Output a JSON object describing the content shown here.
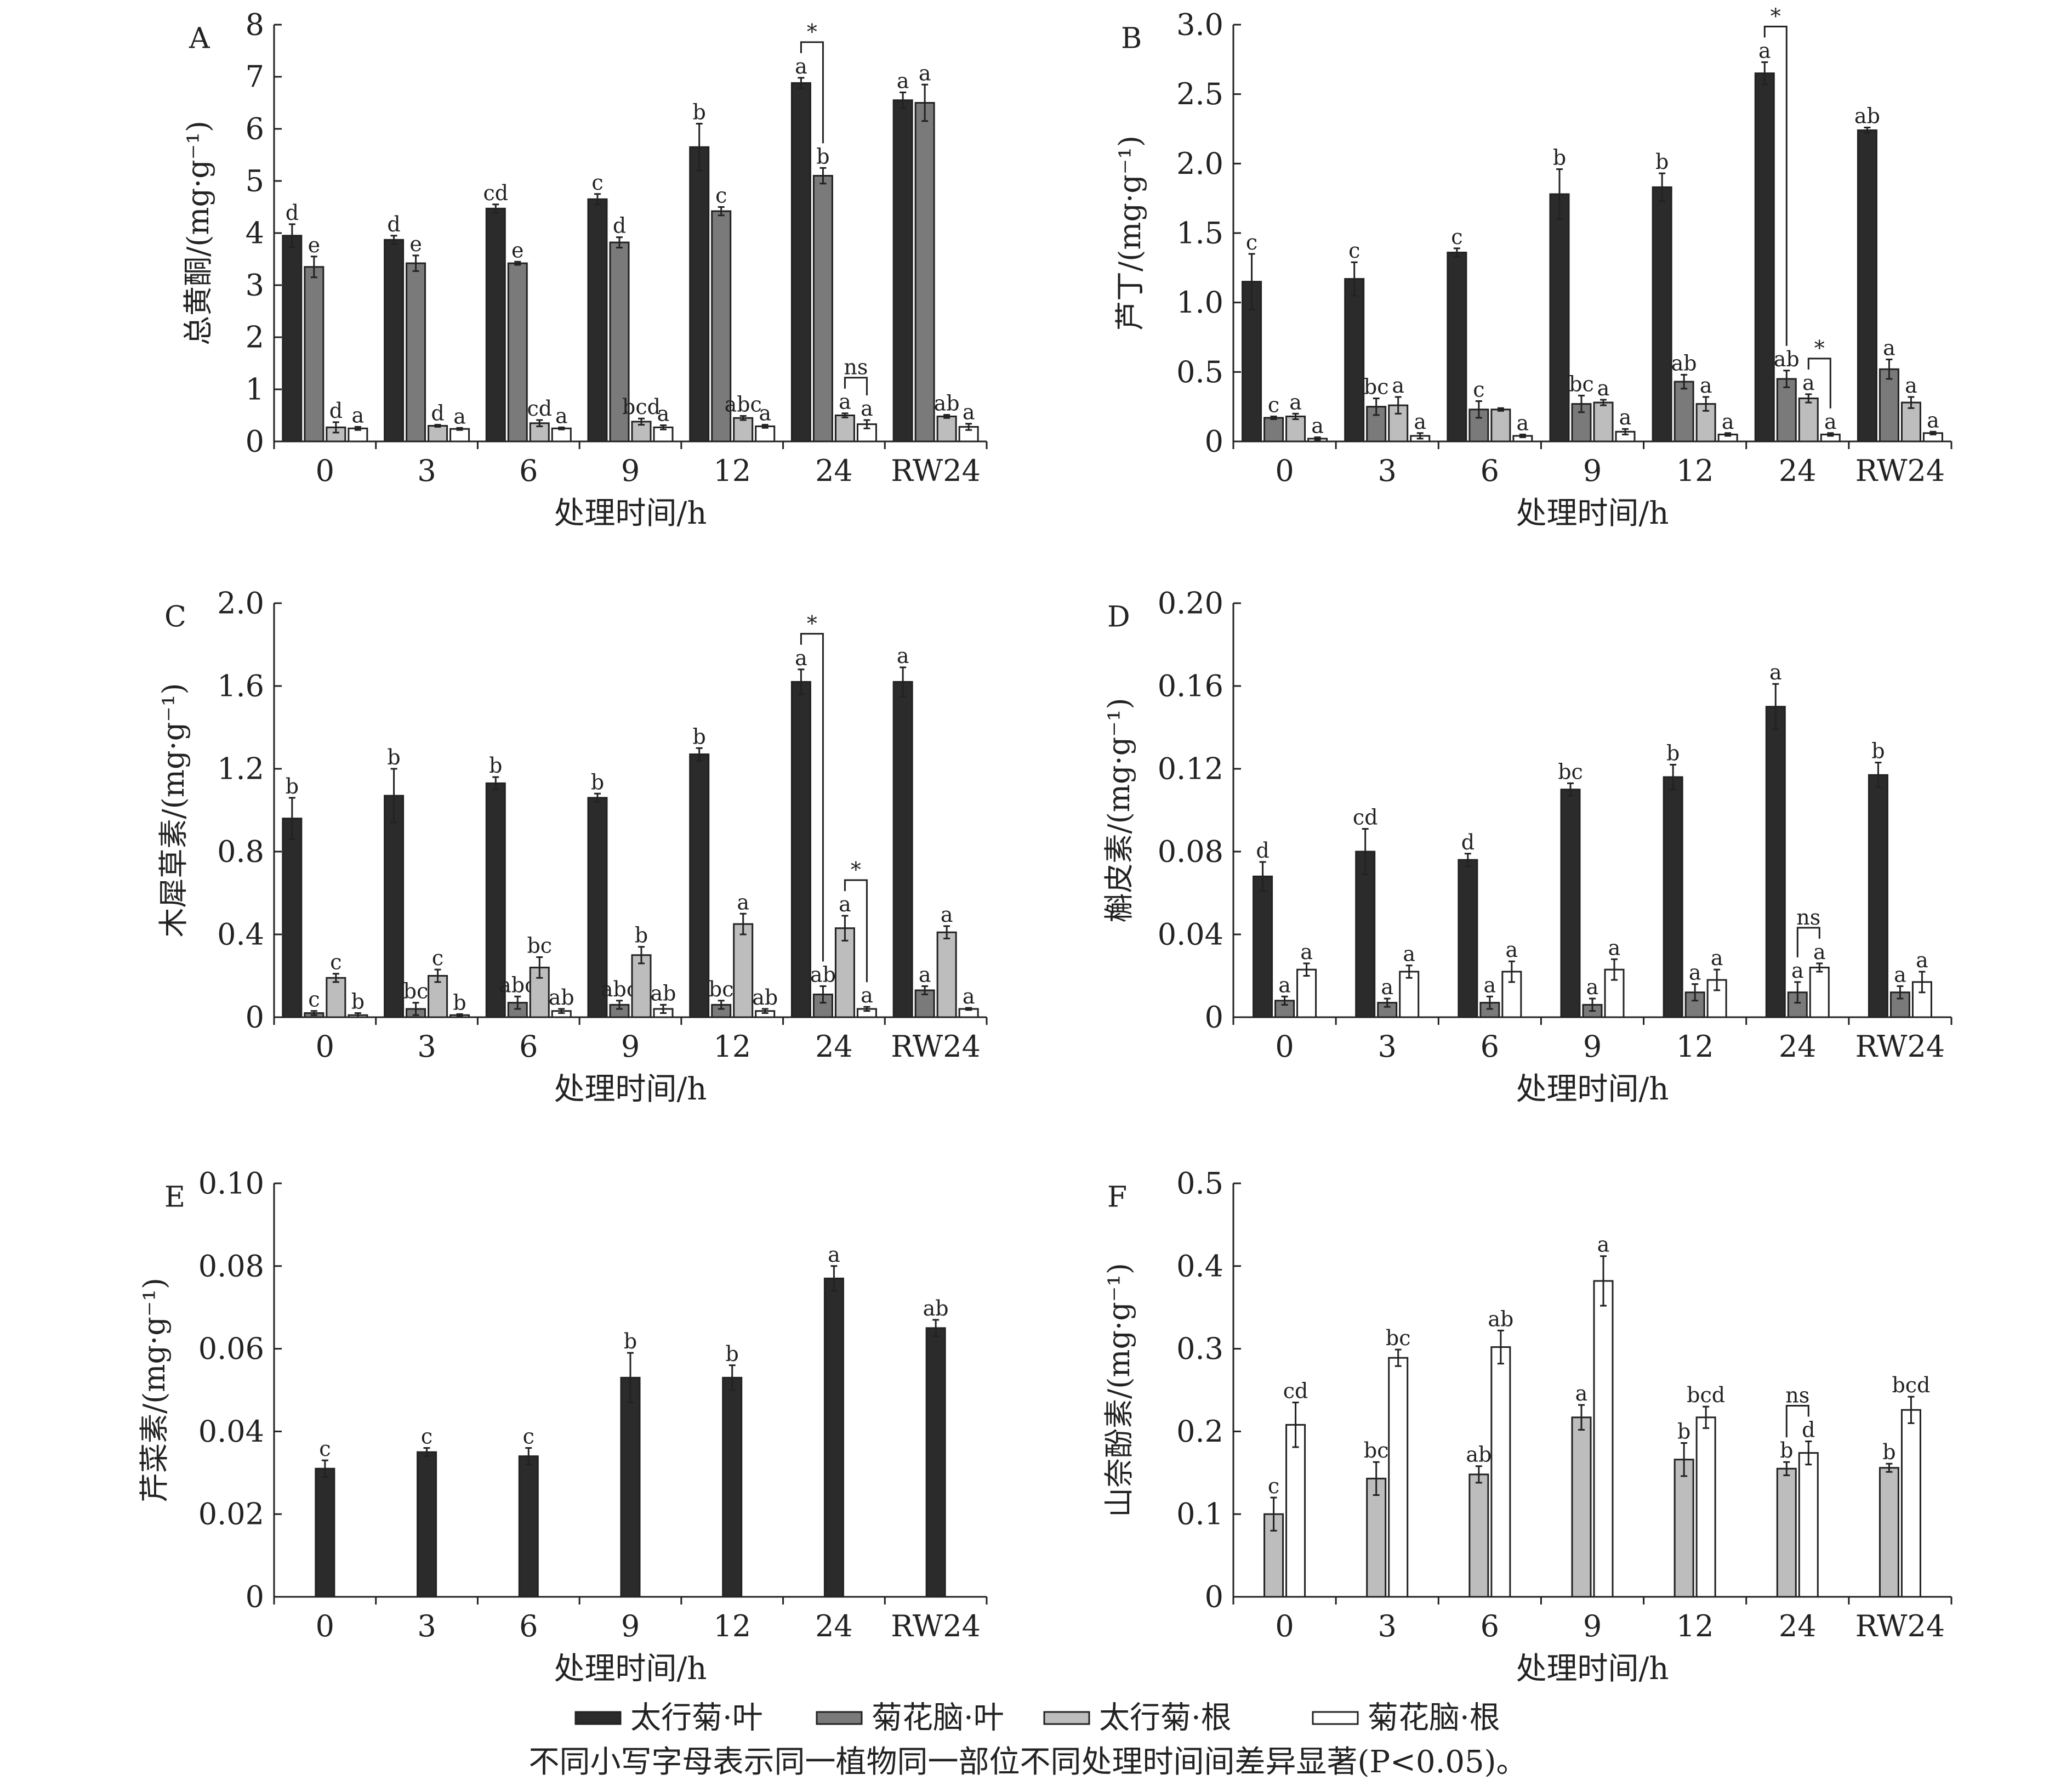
{
  "legend": [
    {
      "name": "太行菊·叶",
      "color": "#2b2b2b"
    },
    {
      "name": "菊花脑·叶",
      "color": "#7a7a7a"
    },
    {
      "name": "太行菊·根",
      "color": "#bdbdbd"
    },
    {
      "name": "菊花脑·根",
      "color": "#ffffff"
    }
  ],
  "footnote": "不同小写字母表示同一植物同一部位不同处理时间间差异显著(P<0.05)。",
  "chart_data": [
    {
      "type": "bar",
      "panel": "A",
      "ylabel": "总黄酮/(mg·g⁻¹)",
      "xlabel": "处理时间/h",
      "categories": [
        "0",
        "3",
        "6",
        "9",
        "12",
        "24",
        "RW24"
      ],
      "ylim": [
        0,
        8
      ],
      "yticks": [
        "0",
        "1",
        "2",
        "3",
        "4",
        "5",
        "6",
        "7",
        "8"
      ],
      "ytick_values": [
        0,
        1,
        2,
        3,
        4,
        5,
        6,
        7,
        8
      ],
      "series": [
        {
          "name": "太行菊·叶",
          "values": [
            3.95,
            3.87,
            4.47,
            4.65,
            5.65,
            6.88,
            6.55
          ],
          "errors": [
            0.22,
            0.08,
            0.08,
            0.1,
            0.45,
            0.1,
            0.15
          ],
          "labels": [
            "d",
            "d",
            "cd",
            "c",
            "b",
            "a",
            "a"
          ]
        },
        {
          "name": "菊花脑·叶",
          "values": [
            3.35,
            3.42,
            3.42,
            3.82,
            4.42,
            5.1,
            6.5
          ],
          "errors": [
            0.2,
            0.15,
            0.03,
            0.1,
            0.08,
            0.15,
            0.35
          ],
          "labels": [
            "e",
            "e",
            "e",
            "d",
            "c",
            "b",
            "a"
          ]
        },
        {
          "name": "太行菊·根",
          "values": [
            0.27,
            0.3,
            0.35,
            0.38,
            0.45,
            0.5,
            0.48
          ],
          "errors": [
            0.1,
            0.02,
            0.06,
            0.06,
            0.04,
            0.04,
            0.03
          ],
          "labels": [
            "d",
            "d",
            "cd",
            "bcd",
            "abc",
            "a",
            "ab"
          ]
        },
        {
          "name": "菊花脑·根",
          "values": [
            0.25,
            0.24,
            0.25,
            0.27,
            0.29,
            0.33,
            0.28
          ],
          "errors": [
            0.03,
            0.02,
            0.02,
            0.04,
            0.03,
            0.08,
            0.06
          ],
          "labels": [
            "a",
            "a",
            "a",
            "a",
            "a",
            "a",
            "a"
          ]
        }
      ],
      "annotations": [
        {
          "category": "24",
          "series": [
            "太行菊·叶",
            "菊花脑·叶"
          ],
          "text": "*"
        },
        {
          "category": "24",
          "series": [
            "太行菊·根",
            "菊花脑·根"
          ],
          "text": "ns"
        }
      ]
    },
    {
      "type": "bar",
      "panel": "B",
      "ylabel": "芦丁/(mg·g⁻¹)",
      "xlabel": "处理时间/h",
      "categories": [
        "0",
        "3",
        "6",
        "9",
        "12",
        "24",
        "RW24"
      ],
      "ylim": [
        0,
        3.0
      ],
      "yticks": [
        "0",
        "0.5",
        "1.0",
        "1.5",
        "2.0",
        "2.5",
        "3.0"
      ],
      "ytick_values": [
        0,
        0.5,
        1,
        1.5,
        2,
        2.5,
        3
      ],
      "series": [
        {
          "name": "太行菊·叶",
          "values": [
            1.15,
            1.17,
            1.36,
            1.78,
            1.83,
            2.65,
            2.24
          ],
          "errors": [
            0.2,
            0.12,
            0.03,
            0.18,
            0.1,
            0.08,
            0.02
          ],
          "labels": [
            "c",
            "c",
            "c",
            "b",
            "b",
            "a",
            "ab"
          ]
        },
        {
          "name": "菊花脑·叶",
          "values": [
            0.17,
            0.25,
            0.23,
            0.27,
            0.43,
            0.45,
            0.52
          ],
          "errors": [
            0.01,
            0.06,
            0.06,
            0.06,
            0.05,
            0.06,
            0.07
          ],
          "labels": [
            "c",
            "bc",
            "c",
            "bc",
            "ab",
            "ab",
            "a"
          ]
        },
        {
          "name": "太行菊·根",
          "values": [
            0.18,
            0.26,
            0.23,
            0.28,
            0.27,
            0.31,
            0.28
          ],
          "errors": [
            0.02,
            0.06,
            0.01,
            0.02,
            0.05,
            0.03,
            0.04
          ],
          "labels": [
            "a",
            "a",
            "",
            "a",
            "a",
            "a",
            "a"
          ]
        },
        {
          "name": "菊花脑·根",
          "values": [
            0.02,
            0.04,
            0.04,
            0.07,
            0.05,
            0.05,
            0.06
          ],
          "errors": [
            0.01,
            0.02,
            0.01,
            0.02,
            0.01,
            0.01,
            0.01
          ],
          "labels": [
            "a",
            "a",
            "a",
            "a",
            "a",
            "a",
            "a"
          ]
        }
      ],
      "annotations": [
        {
          "category": "24",
          "series": [
            "太行菊·叶",
            "菊花脑·叶"
          ],
          "text": "*"
        },
        {
          "category": "24",
          "series": [
            "太行菊·根",
            "菊花脑·根"
          ],
          "text": "*"
        }
      ]
    },
    {
      "type": "bar",
      "panel": "C",
      "ylabel": "木犀草素/(mg·g⁻¹)",
      "xlabel": "处理时间/h",
      "categories": [
        "0",
        "3",
        "6",
        "9",
        "12",
        "24",
        "RW24"
      ],
      "ylim": [
        0,
        2.0
      ],
      "yticks": [
        "0",
        "0.4",
        "0.8",
        "1.2",
        "1.6",
        "2.0"
      ],
      "ytick_values": [
        0,
        0.4,
        0.8,
        1.2,
        1.6,
        2.0
      ],
      "series": [
        {
          "name": "太行菊·叶",
          "values": [
            0.96,
            1.07,
            1.13,
            1.06,
            1.27,
            1.62,
            1.62
          ],
          "errors": [
            0.1,
            0.13,
            0.03,
            0.02,
            0.03,
            0.06,
            0.07
          ],
          "labels": [
            "b",
            "b",
            "b",
            "b",
            "b",
            "a",
            "a"
          ]
        },
        {
          "name": "菊花脑·叶",
          "values": [
            0.02,
            0.04,
            0.07,
            0.06,
            0.06,
            0.11,
            0.13
          ],
          "errors": [
            0.01,
            0.03,
            0.03,
            0.02,
            0.02,
            0.04,
            0.02
          ],
          "labels": [
            "c",
            "bc",
            "abc",
            "abc",
            "bc",
            "ab",
            "a"
          ]
        },
        {
          "name": "太行菊·根",
          "values": [
            0.19,
            0.2,
            0.24,
            0.3,
            0.45,
            0.43,
            0.41
          ],
          "errors": [
            0.02,
            0.03,
            0.05,
            0.04,
            0.05,
            0.06,
            0.03
          ],
          "labels": [
            "c",
            "c",
            "bc",
            "b",
            "a",
            "a",
            "a"
          ]
        },
        {
          "name": "菊花脑·根",
          "values": [
            0.01,
            0.01,
            0.03,
            0.04,
            0.03,
            0.04,
            0.04
          ],
          "errors": [
            0.01,
            0.005,
            0.01,
            0.02,
            0.01,
            0.01,
            0.005
          ],
          "labels": [
            "b",
            "b",
            "ab",
            "ab",
            "ab",
            "a",
            "a"
          ]
        }
      ],
      "annotations": [
        {
          "category": "24",
          "series": [
            "太行菊·叶",
            "菊花脑·叶"
          ],
          "text": "*"
        },
        {
          "category": "24",
          "series": [
            "太行菊·根",
            "菊花脑·根"
          ],
          "text": "*"
        }
      ]
    },
    {
      "type": "bar",
      "panel": "D",
      "ylabel": "槲皮素/(mg·g⁻¹)",
      "xlabel": "处理时间/h",
      "categories": [
        "0",
        "3",
        "6",
        "9",
        "12",
        "24",
        "RW24"
      ],
      "ylim": [
        0,
        0.2
      ],
      "yticks": [
        "0",
        "0.04",
        "0.08",
        "0.12",
        "0.16",
        "0.20"
      ],
      "ytick_values": [
        0,
        0.04,
        0.08,
        0.12,
        0.16,
        0.2
      ],
      "series": [
        {
          "name": "太行菊·叶",
          "values": [
            0.068,
            0.08,
            0.076,
            0.11,
            0.116,
            0.15,
            0.117
          ],
          "errors": [
            0.007,
            0.011,
            0.003,
            0.003,
            0.006,
            0.011,
            0.006
          ],
          "labels": [
            "d",
            "cd",
            "d",
            "bc",
            "b",
            "a",
            "b"
          ]
        },
        {
          "name": "菊花脑·叶",
          "values": [
            0.008,
            0.007,
            0.007,
            0.006,
            0.012,
            0.012,
            0.012
          ],
          "errors": [
            0.002,
            0.002,
            0.003,
            0.003,
            0.004,
            0.005,
            0.003
          ],
          "labels": [
            "a",
            "a",
            "a",
            "a",
            "a",
            "a",
            "a"
          ]
        },
        {
          "name": "菊花脑·根",
          "values": [
            0.023,
            0.022,
            0.022,
            0.023,
            0.018,
            0.024,
            0.017
          ],
          "errors": [
            0.003,
            0.003,
            0.005,
            0.005,
            0.005,
            0.002,
            0.005
          ],
          "labels": [
            "a",
            "a",
            "a",
            "a",
            "a",
            "a",
            "a"
          ]
        }
      ],
      "annotations": [
        {
          "category": "24",
          "series": [
            "菊花脑·叶",
            "菊花脑·根"
          ],
          "text": "ns"
        }
      ]
    },
    {
      "type": "bar",
      "panel": "E",
      "ylabel": "芹菜素/(mg·g⁻¹)",
      "xlabel": "处理时间/h",
      "categories": [
        "0",
        "3",
        "6",
        "9",
        "12",
        "24",
        "RW24"
      ],
      "ylim": [
        0,
        0.1
      ],
      "yticks": [
        "0",
        "0.02",
        "0.04",
        "0.06",
        "0.08",
        "0.10"
      ],
      "ytick_values": [
        0,
        0.02,
        0.04,
        0.06,
        0.08,
        0.1
      ],
      "series": [
        {
          "name": "太行菊·叶",
          "values": [
            0.031,
            0.035,
            0.034,
            0.053,
            0.053,
            0.077,
            0.065
          ],
          "errors": [
            0.002,
            0.001,
            0.002,
            0.006,
            0.003,
            0.003,
            0.002
          ],
          "labels": [
            "c",
            "c",
            "c",
            "b",
            "b",
            "a",
            "ab"
          ]
        }
      ]
    },
    {
      "type": "bar",
      "panel": "F",
      "ylabel": "山奈酚素/(mg·g⁻¹)",
      "xlabel": "处理时间/h",
      "categories": [
        "0",
        "3",
        "6",
        "9",
        "12",
        "24",
        "RW24"
      ],
      "ylim": [
        0,
        0.5
      ],
      "yticks": [
        "0",
        "0.1",
        "0.2",
        "0.3",
        "0.4",
        "0.5"
      ],
      "ytick_values": [
        0,
        0.1,
        0.2,
        0.3,
        0.4,
        0.5
      ],
      "series": [
        {
          "name": "太行菊·根",
          "values": [
            0.1,
            0.143,
            0.148,
            0.217,
            0.166,
            0.155,
            0.156
          ],
          "errors": [
            0.02,
            0.02,
            0.01,
            0.015,
            0.02,
            0.008,
            0.005
          ],
          "labels": [
            "c",
            "bc",
            "ab",
            "a",
            "b",
            "b",
            "b"
          ]
        },
        {
          "name": "菊花脑·根",
          "values": [
            0.208,
            0.289,
            0.302,
            0.382,
            0.217,
            0.174,
            0.226
          ],
          "errors": [
            0.027,
            0.01,
            0.02,
            0.03,
            0.013,
            0.014,
            0.016
          ],
          "labels": [
            "cd",
            "bc",
            "ab",
            "a",
            "bcd",
            "d",
            "bcd"
          ]
        }
      ],
      "annotations": [
        {
          "category": "24",
          "series": [
            "太行菊·根",
            "菊花脑·根"
          ],
          "text": "ns"
        }
      ]
    }
  ]
}
